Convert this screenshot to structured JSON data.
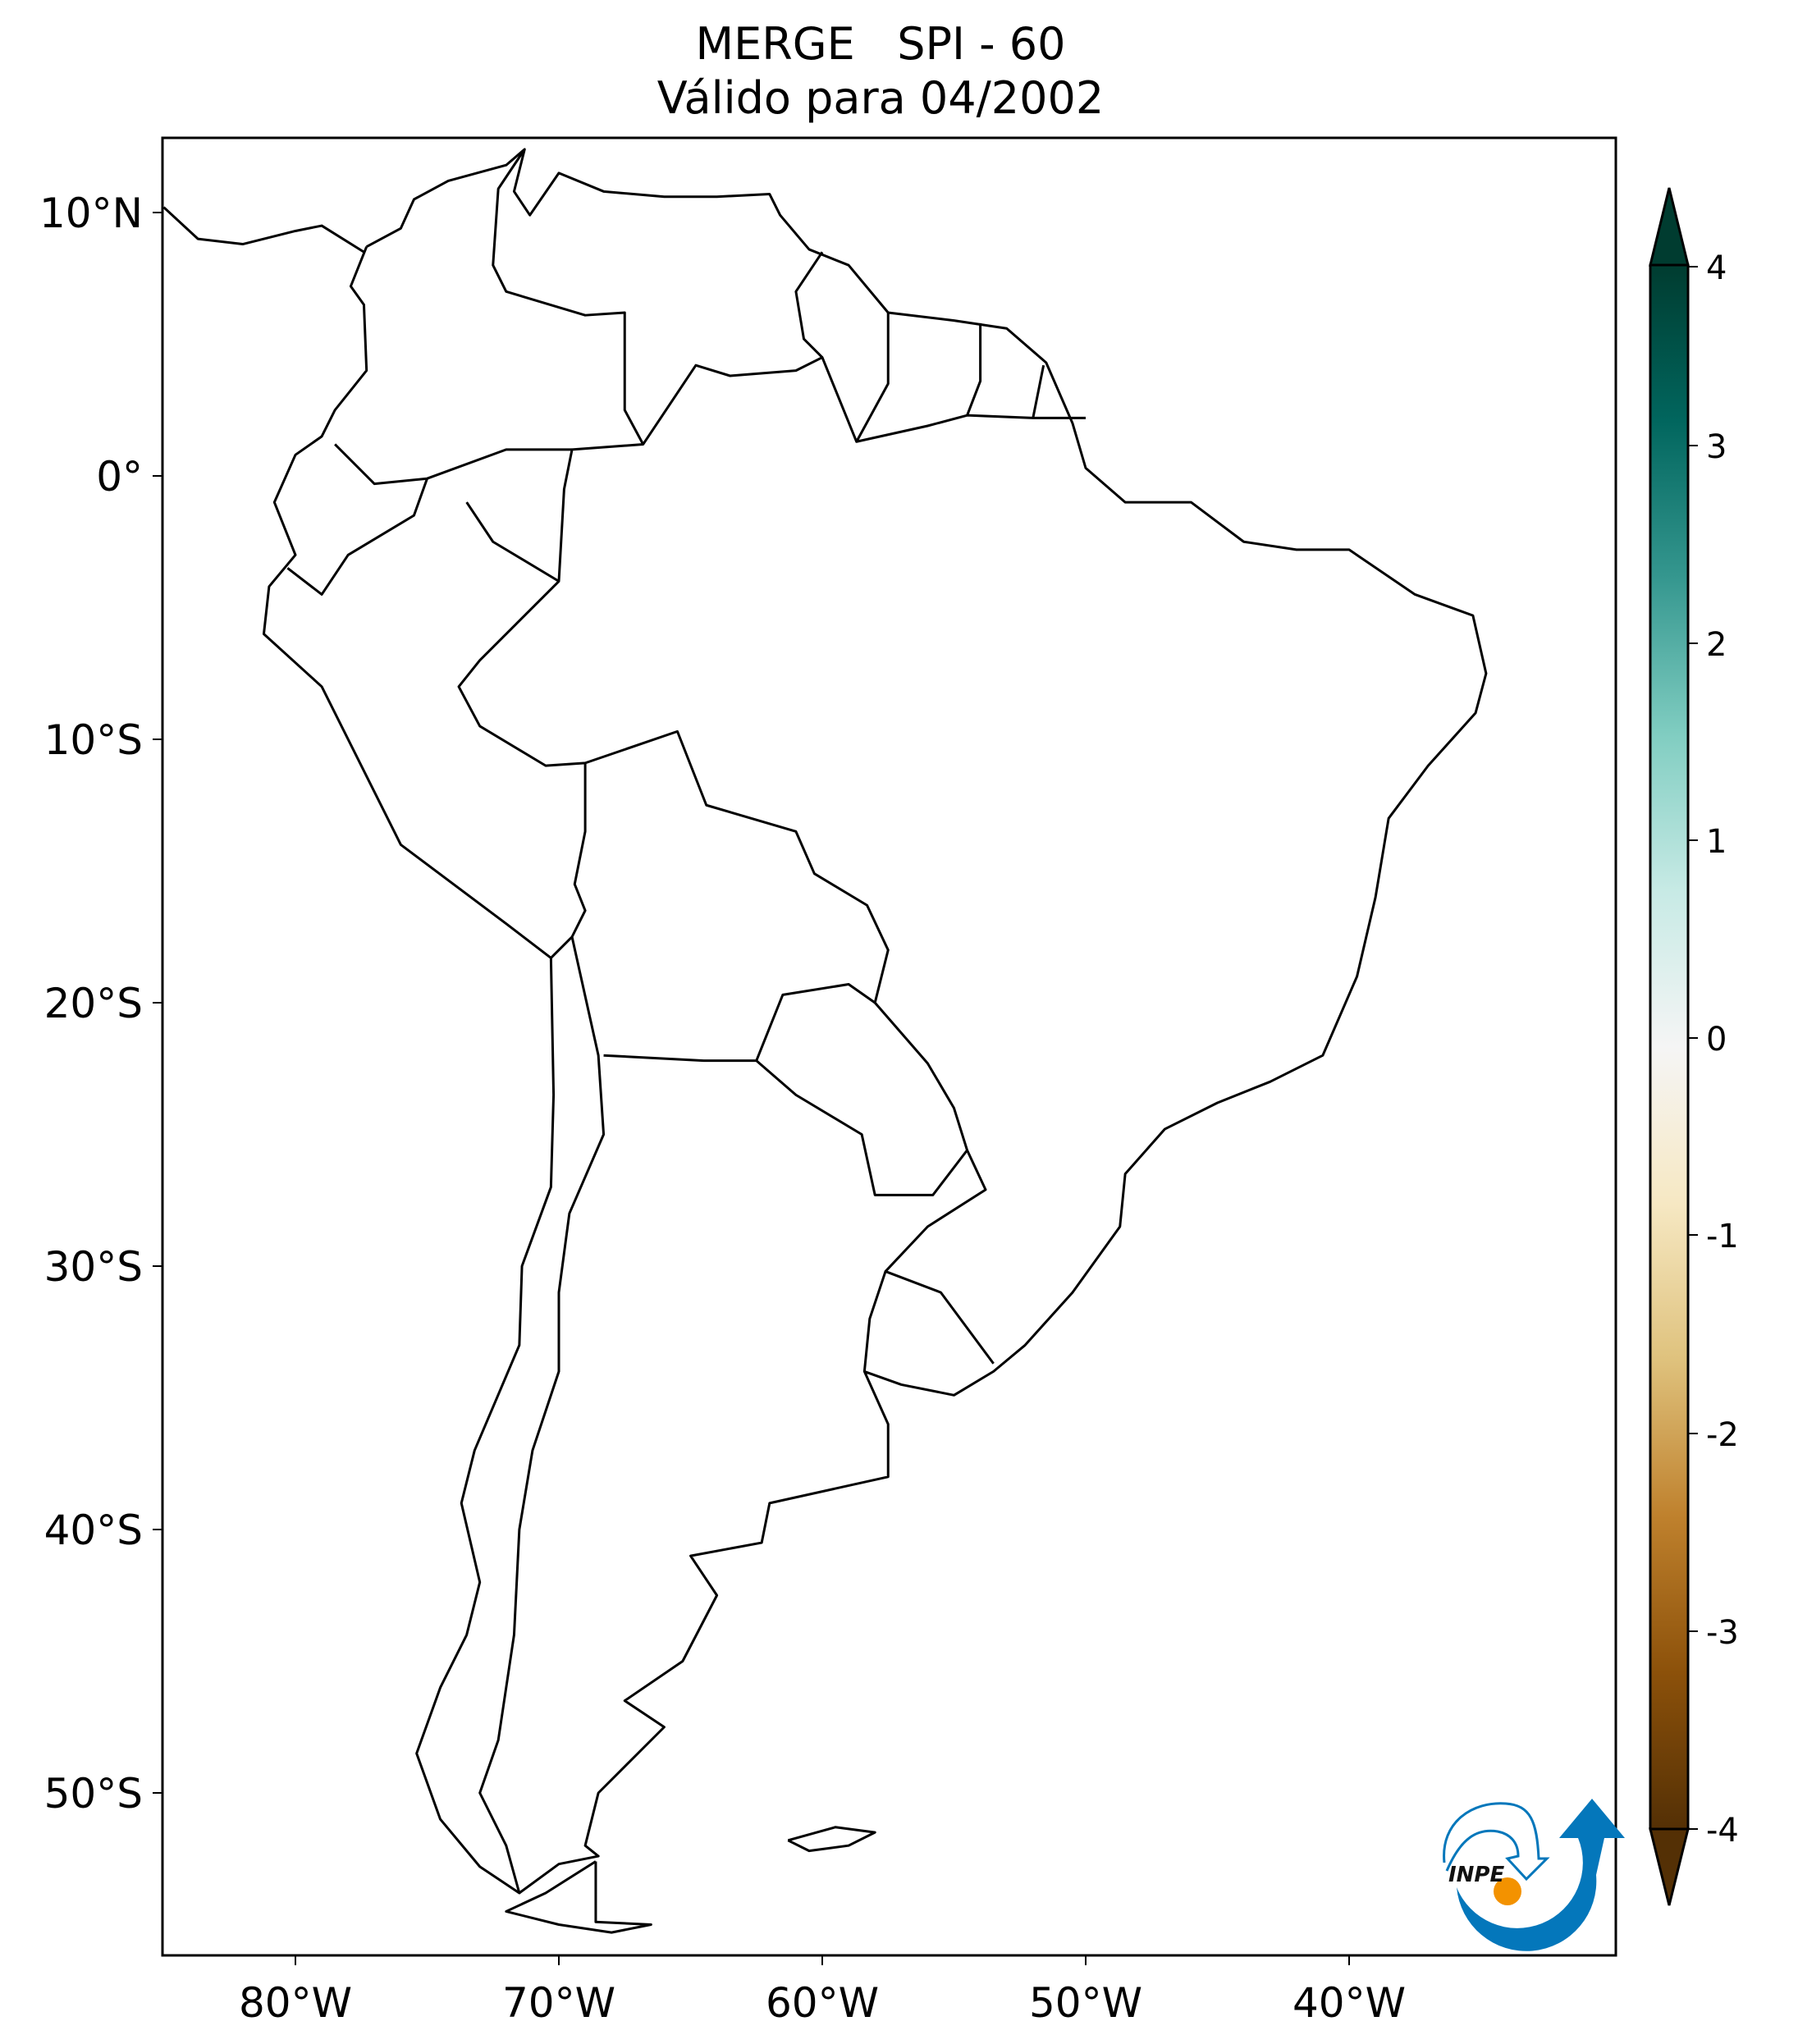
{
  "title": {
    "line1": "MERGE   SPI - 60",
    "line2": "Válido para 04/2002"
  },
  "map": {
    "projection": "plate-carree",
    "lon_range": [
      -85,
      -30
    ],
    "lat_range": [
      -56,
      12.8
    ],
    "fill_value": "white (SPI ≈ 0 everywhere)",
    "x_ticks": [
      {
        "lon": -80,
        "label": "80°W"
      },
      {
        "lon": -70,
        "label": "70°W"
      },
      {
        "lon": -60,
        "label": "60°W"
      },
      {
        "lon": -50,
        "label": "50°W"
      },
      {
        "lon": -40,
        "label": "40°W"
      }
    ],
    "y_ticks": [
      {
        "lat": 10,
        "label": "10°N"
      },
      {
        "lat": 0,
        "label": "0°"
      },
      {
        "lat": -10,
        "label": "10°S"
      },
      {
        "lat": -20,
        "label": "20°S"
      },
      {
        "lat": -30,
        "label": "30°S"
      },
      {
        "lat": -40,
        "label": "40°S"
      },
      {
        "lat": -50,
        "label": "50°S"
      }
    ]
  },
  "colorbar": {
    "colormap": "BrBG",
    "range": [
      -4,
      4
    ],
    "extend": "both",
    "ticks": [
      "4",
      "3",
      "2",
      "1",
      "0",
      "-1",
      "-2",
      "-3",
      "-4"
    ],
    "colors": [
      "#543005",
      "#8c510a",
      "#bf812d",
      "#dfc27d",
      "#f6e8c3",
      "#f5f5f5",
      "#c7eae5",
      "#80cdc1",
      "#35978f",
      "#01665e",
      "#003c30"
    ]
  },
  "logo": {
    "text": "INPE",
    "blue": "#0477bb",
    "orange": "#f39200"
  }
}
